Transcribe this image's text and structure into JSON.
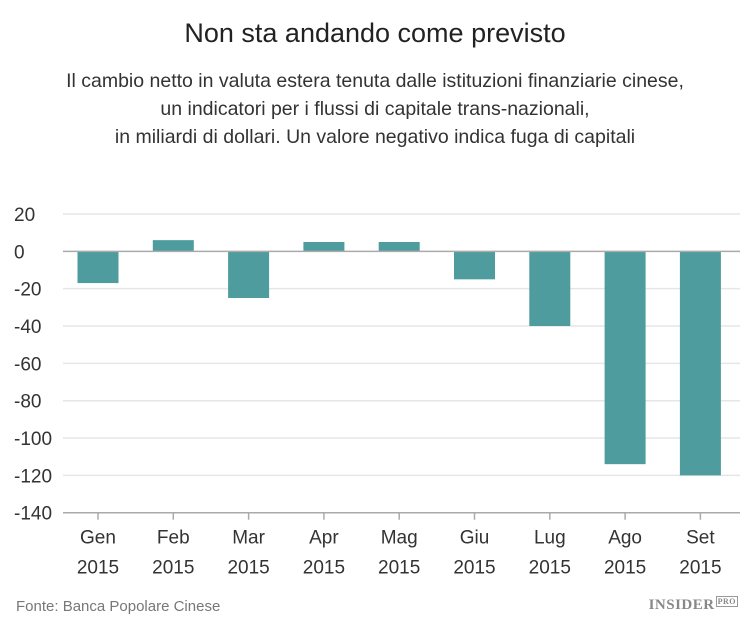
{
  "chart_data": {
    "type": "bar",
    "title": "Non sta andando come previsto",
    "subtitle": [
      "Il cambio netto in valuta estera tenuta dalle istituzioni finanziarie cinese,",
      "un indicatori per i flussi di capitale trans-nazionali,",
      "in miliardi di dollari. Un valore negativo indica fuga di capitali"
    ],
    "categories": [
      [
        "Gen",
        "2015"
      ],
      [
        "Feb",
        "2015"
      ],
      [
        "Mar",
        "2015"
      ],
      [
        "Apr",
        "2015"
      ],
      [
        "Mag",
        "2015"
      ],
      [
        "Giu",
        "2015"
      ],
      [
        "Lug",
        "2015"
      ],
      [
        "Ago",
        "2015"
      ],
      [
        "Set",
        "2015"
      ]
    ],
    "values": [
      -17,
      6,
      -25,
      5,
      5,
      -15,
      -40,
      -114,
      -120
    ],
    "ylim": [
      -140,
      20
    ],
    "yticks": [
      20,
      0,
      -20,
      -40,
      -60,
      -80,
      -100,
      -120,
      -140
    ],
    "grid": true,
    "bar_color": "#4a9a9c",
    "source": "Fonte: Banca Popolare Cinese"
  },
  "brand": {
    "name": "INSIDER",
    "suffix": "PRO"
  }
}
